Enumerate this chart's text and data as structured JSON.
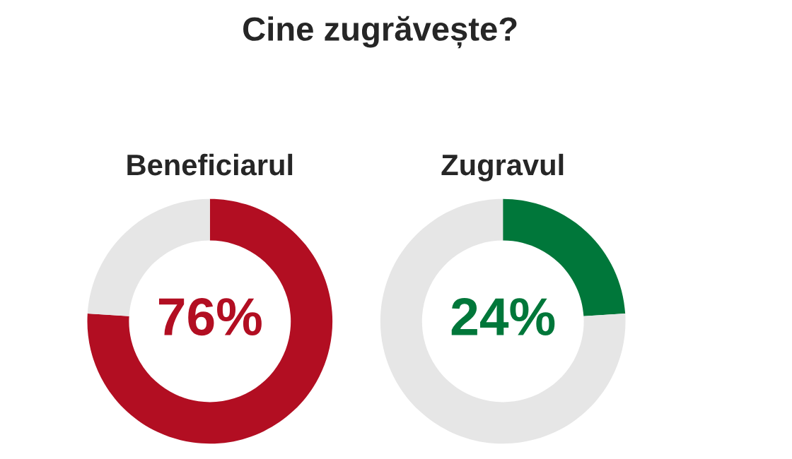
{
  "chart_data": [
    {
      "type": "other",
      "title": "Cine zugrăvește?"
    },
    {
      "type": "donut",
      "title": "Beneficiarul",
      "categories": [
        null,
        null
      ],
      "values": [
        76,
        24
      ],
      "colors": [
        "#b20e22",
        "#e6e6e6"
      ],
      "value_labels": [
        "76%",
        null
      ]
    },
    {
      "type": "donut",
      "title": "Zugravul",
      "categories": [
        null,
        null
      ],
      "values": [
        24,
        76
      ],
      "colors": [
        "#00773a",
        "#e6e6e6"
      ],
      "value_labels": [
        "24%",
        null
      ]
    }
  ]
}
